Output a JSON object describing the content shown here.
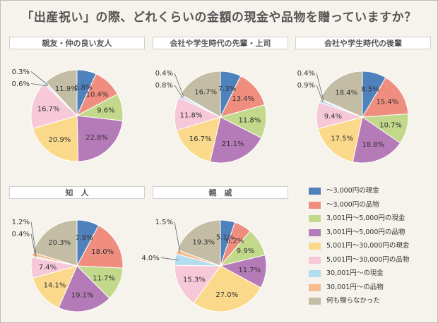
{
  "title": "「出産祝い」の際、どれくらいの金額の現金や品物を贈っていますか？",
  "legend": [
    {
      "label": "～3,000円の現金",
      "color": "#4f81bd"
    },
    {
      "label": "～3,000円の品物",
      "color": "#ef8e7f"
    },
    {
      "label": "3,001円～5,000円の現金",
      "color": "#c2d88a"
    },
    {
      "label": "3,001円～5,000円の品物",
      "color": "#b57ab8"
    },
    {
      "label": "5,001円～30,000円の現金",
      "color": "#fbd98a"
    },
    {
      "label": "5,001円～30,000円の品物",
      "color": "#f6c8d8"
    },
    {
      "label": "30,001円～の現金",
      "color": "#b4dcef"
    },
    {
      "label": "30,001円～の品物",
      "color": "#f6be8e"
    },
    {
      "label": "何も贈らなかった",
      "color": "#c4bda6"
    }
  ],
  "chart_data": [
    {
      "type": "pie",
      "title": "親友・仲の良い友人",
      "values": [
        6.8,
        10.4,
        9.6,
        22.8,
        20.9,
        16.7,
        0.6,
        0.3,
        11.9
      ],
      "labels": [
        "6.8%",
        "10.4%",
        "9.6%",
        "22.8%",
        "20.9%",
        "16.7%",
        "0.6%",
        "0.3%",
        "11.9%"
      ]
    },
    {
      "type": "pie",
      "title": "会社や学生時代の先輩・上司",
      "values": [
        7.3,
        13.4,
        11.8,
        21.1,
        16.7,
        11.8,
        0.8,
        0.4,
        16.7
      ],
      "labels": [
        "7.3%",
        "13.4%",
        "11.8%",
        "21.1%",
        "16.7%",
        "11.8%",
        "0.8%",
        "0.4%",
        "16.7%"
      ]
    },
    {
      "type": "pie",
      "title": "会社や学生時代の後輩",
      "values": [
        8.5,
        15.4,
        10.7,
        18.8,
        17.5,
        9.4,
        0.9,
        0.4,
        18.4
      ],
      "labels": [
        "8.5%",
        "15.4%",
        "10.7%",
        "18.8%",
        "17.5%",
        "9.4%",
        "0.9%",
        "0.4%",
        "18.4%"
      ]
    },
    {
      "type": "pie",
      "title": "知　人",
      "values": [
        7.8,
        18.0,
        11.7,
        19.1,
        14.1,
        7.4,
        0.4,
        1.2,
        20.3
      ],
      "labels": [
        "7.8%",
        "18.0%",
        "11.7%",
        "19.1%",
        "14.1%",
        "7.4%",
        "0.4%",
        "1.2%",
        "20.3%"
      ]
    },
    {
      "type": "pie",
      "title": "親　戚",
      "values": [
        5.1,
        6.2,
        9.9,
        11.7,
        27.0,
        15.3,
        4.0,
        1.5,
        19.3
      ],
      "labels": [
        "5.1%",
        "6.2%",
        "9.9%",
        "11.7%",
        "27.0%",
        "15.3%",
        "4.0%",
        "1.5%",
        "19.3%"
      ]
    }
  ]
}
